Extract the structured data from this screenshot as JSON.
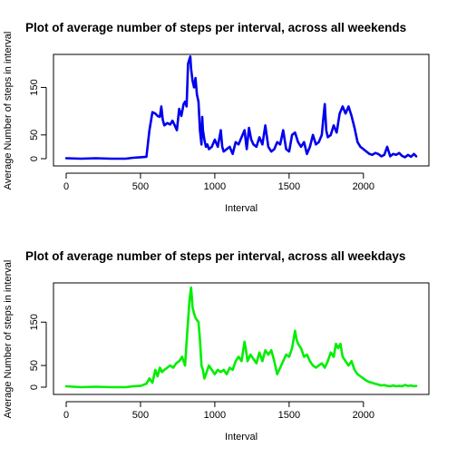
{
  "chart_data": [
    {
      "type": "line",
      "title": "Plot of average number of steps per interval, across all weekends",
      "xlabel": "Interval",
      "ylabel": "Average Number of steps in interval",
      "xlim": [
        0,
        2355
      ],
      "ylim": [
        0,
        210
      ],
      "xticks": [
        0,
        500,
        1000,
        1500,
        2000
      ],
      "yticks": [
        0,
        50,
        150
      ],
      "grid": false,
      "legend": "none",
      "color": "#0000ee",
      "series": [
        {
          "x": [
            0,
            100,
            200,
            300,
            400,
            450,
            500,
            540,
            560,
            580,
            600,
            615,
            630,
            640,
            650,
            660,
            680,
            700,
            715,
            730,
            745,
            760,
            775,
            790,
            800,
            810,
            820,
            830,
            835,
            840,
            850,
            860,
            870,
            880,
            890,
            900,
            910,
            915,
            920,
            930,
            940,
            950,
            960,
            980,
            1000,
            1020,
            1040,
            1050,
            1060,
            1080,
            1100,
            1120,
            1140,
            1160,
            1180,
            1200,
            1215,
            1230,
            1245,
            1260,
            1280,
            1300,
            1320,
            1340,
            1360,
            1380,
            1400,
            1420,
            1440,
            1460,
            1480,
            1500,
            1520,
            1540,
            1560,
            1580,
            1600,
            1620,
            1640,
            1660,
            1680,
            1700,
            1720,
            1730,
            1740,
            1750,
            1760,
            1780,
            1800,
            1820,
            1840,
            1860,
            1880,
            1900,
            1920,
            1940,
            1960,
            1980,
            2000,
            2020,
            2040,
            2060,
            2080,
            2100,
            2120,
            2140,
            2160,
            2180,
            2200,
            2220,
            2240,
            2260,
            2280,
            2300,
            2320,
            2340,
            2355
          ],
          "y": [
            1,
            0,
            1,
            0,
            0,
            2,
            3,
            4,
            60,
            98,
            95,
            90,
            88,
            110,
            82,
            70,
            75,
            72,
            80,
            70,
            60,
            105,
            90,
            115,
            120,
            110,
            200,
            210,
            215,
            190,
            165,
            150,
            170,
            135,
            120,
            60,
            30,
            88,
            60,
            40,
            25,
            30,
            20,
            25,
            40,
            25,
            60,
            25,
            15,
            20,
            25,
            10,
            35,
            30,
            45,
            60,
            20,
            65,
            40,
            30,
            25,
            45,
            30,
            70,
            25,
            15,
            20,
            35,
            30,
            60,
            20,
            15,
            50,
            55,
            35,
            25,
            35,
            10,
            25,
            50,
            30,
            35,
            50,
            85,
            115,
            60,
            45,
            50,
            70,
            55,
            95,
            110,
            95,
            110,
            90,
            65,
            35,
            25,
            20,
            15,
            10,
            8,
            12,
            10,
            5,
            8,
            25,
            5,
            10,
            8,
            12,
            6,
            3,
            8,
            4,
            10,
            5
          ]
        }
      ]
    },
    {
      "type": "line",
      "title": "Plot of average number of steps per interval, across all weekdays",
      "xlabel": "Interval",
      "ylabel": "Average Number of steps in interval",
      "xlim": [
        0,
        2355
      ],
      "ylim": [
        0,
        230
      ],
      "xticks": [
        0,
        500,
        1000,
        1500,
        2000
      ],
      "yticks": [
        0,
        50,
        150
      ],
      "grid": false,
      "legend": "none",
      "color": "#00ee00",
      "series": [
        {
          "x": [
            0,
            100,
            200,
            300,
            400,
            450,
            500,
            540,
            560,
            580,
            600,
            615,
            630,
            645,
            660,
            680,
            700,
            720,
            740,
            760,
            780,
            800,
            815,
            830,
            840,
            845,
            850,
            860,
            870,
            880,
            890,
            900,
            910,
            920,
            930,
            940,
            960,
            980,
            1000,
            1020,
            1040,
            1060,
            1080,
            1100,
            1120,
            1140,
            1160,
            1180,
            1200,
            1210,
            1220,
            1240,
            1260,
            1280,
            1300,
            1320,
            1340,
            1360,
            1380,
            1400,
            1420,
            1440,
            1460,
            1480,
            1500,
            1520,
            1540,
            1550,
            1560,
            1570,
            1580,
            1600,
            1620,
            1640,
            1660,
            1680,
            1700,
            1720,
            1740,
            1760,
            1780,
            1800,
            1815,
            1830,
            1845,
            1860,
            1880,
            1900,
            1920,
            1940,
            1960,
            1980,
            2000,
            2020,
            2040,
            2060,
            2080,
            2100,
            2120,
            2140,
            2160,
            2180,
            2200,
            2220,
            2240,
            2260,
            2280,
            2300,
            2320,
            2340,
            2355
          ],
          "y": [
            2,
            0,
            1,
            0,
            0,
            2,
            3,
            8,
            20,
            10,
            40,
            25,
            45,
            35,
            40,
            45,
            50,
            45,
            55,
            60,
            70,
            50,
            130,
            200,
            230,
            210,
            185,
            170,
            160,
            155,
            150,
            110,
            50,
            40,
            20,
            30,
            50,
            40,
            30,
            40,
            35,
            40,
            30,
            45,
            40,
            60,
            70,
            60,
            105,
            85,
            60,
            75,
            65,
            55,
            80,
            60,
            85,
            75,
            85,
            60,
            30,
            45,
            60,
            75,
            70,
            90,
            130,
            110,
            100,
            95,
            90,
            70,
            75,
            60,
            50,
            45,
            50,
            55,
            45,
            60,
            80,
            70,
            100,
            90,
            100,
            70,
            60,
            50,
            60,
            40,
            30,
            25,
            20,
            15,
            12,
            10,
            8,
            6,
            4,
            5,
            3,
            2,
            4,
            2,
            3,
            2,
            5,
            3,
            4,
            2,
            3
          ]
        }
      ]
    }
  ]
}
